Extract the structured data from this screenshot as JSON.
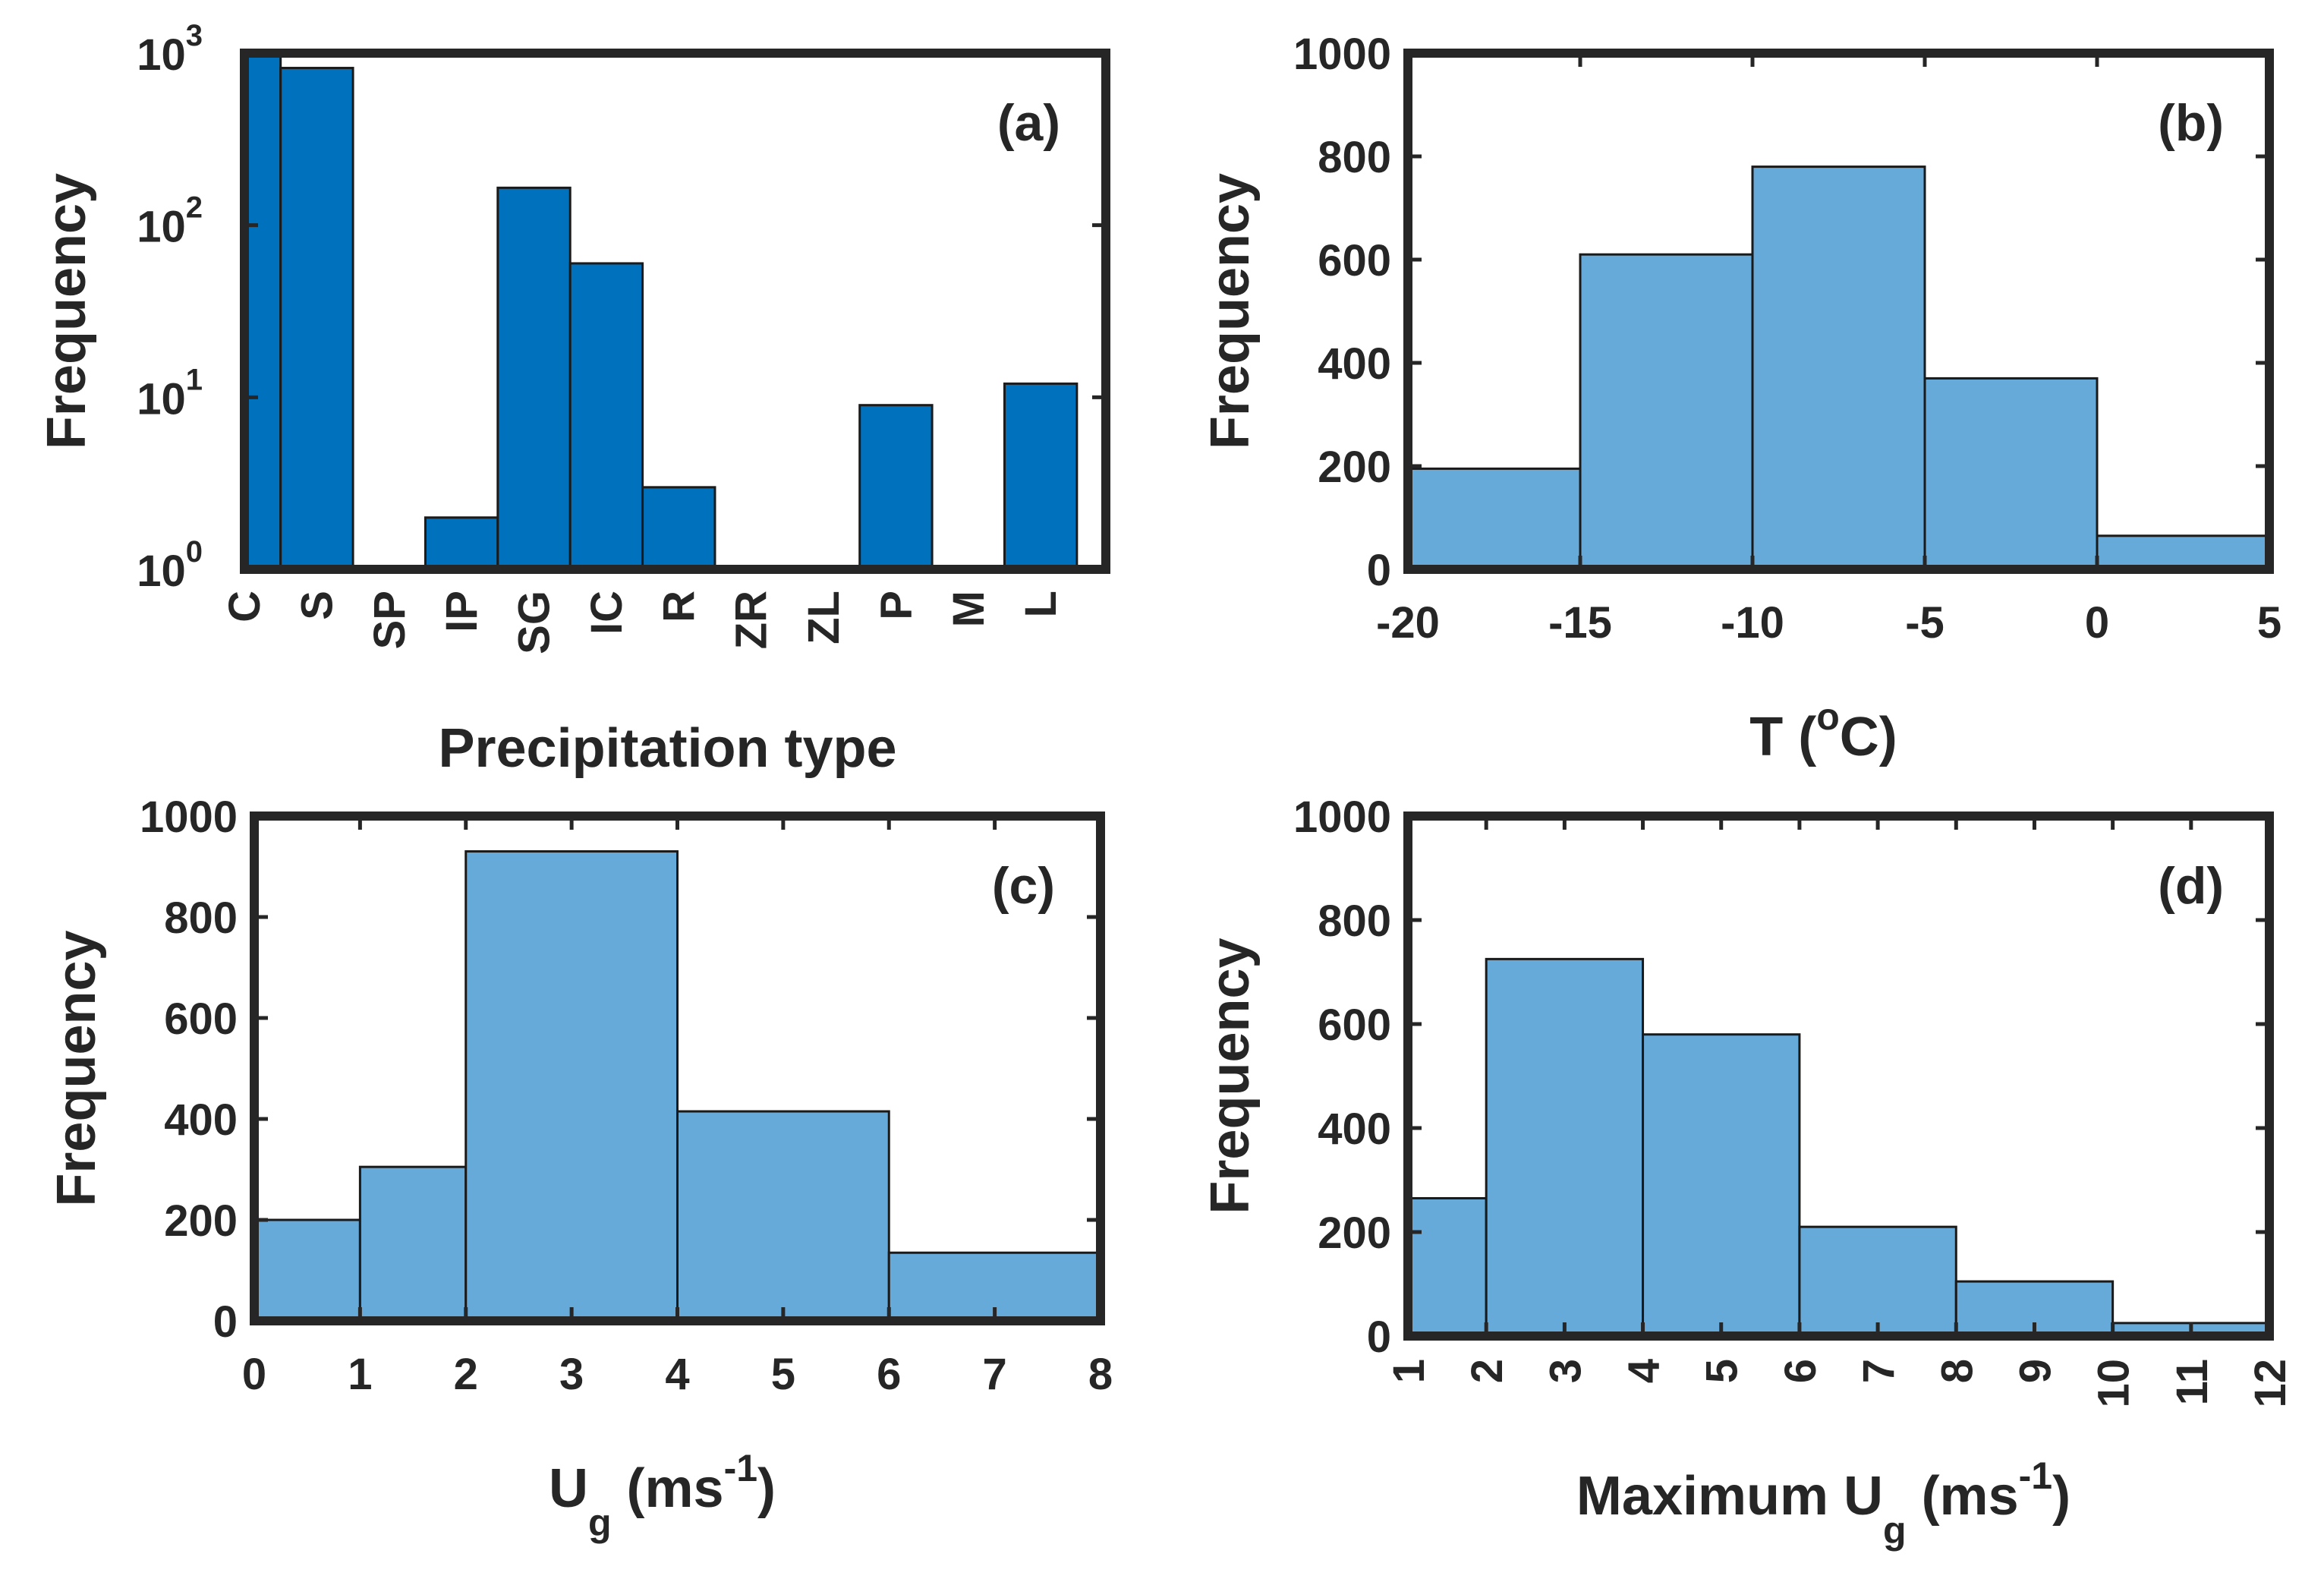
{
  "chart_data": [
    {
      "id": "a",
      "type": "bar",
      "scale": "log",
      "panel_label": "(a)",
      "xlabel": "Precipitation type",
      "ylabel": "Frequency",
      "categories": [
        "C",
        "S",
        "SP",
        "IP",
        "SG",
        "IC",
        "R",
        "ZR",
        "ZL",
        "P",
        "M",
        "L"
      ],
      "values": [
        1000,
        820,
        0,
        2,
        165,
        60,
        3,
        0,
        0,
        9,
        0,
        12
      ],
      "ylim": [
        1,
        1000
      ],
      "yticks": [
        {
          "base": "10",
          "exp": "0"
        },
        {
          "base": "10",
          "exp": "1"
        },
        {
          "base": "10",
          "exp": "2"
        },
        {
          "base": "10",
          "exp": "3"
        }
      ],
      "color": "#0072BD"
    },
    {
      "id": "b",
      "type": "histogram",
      "panel_label": "(b)",
      "xlabel": {
        "main": "T (",
        "sup": "o",
        "tail": "C)"
      },
      "ylabel": "Frequency",
      "edges": [
        -20,
        -15,
        -10,
        -5,
        0,
        5
      ],
      "values": [
        195,
        610,
        780,
        370,
        65
      ],
      "xlim": [
        -20,
        5
      ],
      "ylim": [
        0,
        1000
      ],
      "xticks": [
        "-20",
        "-15",
        "-10",
        "-5",
        "0",
        "5"
      ],
      "yticks": [
        "0",
        "200",
        "400",
        "600",
        "800",
        "1000"
      ],
      "color": "#66AADA"
    },
    {
      "id": "c",
      "type": "histogram",
      "panel_label": "(c)",
      "xlabel": {
        "main": "U",
        "sub": "g",
        "mid": " (ms",
        "sup": "-1",
        "tail": ")"
      },
      "ylabel": "Frequency",
      "edges": [
        0,
        1,
        2,
        4,
        6,
        8
      ],
      "values": [
        200,
        305,
        930,
        415,
        135
      ],
      "xlim": [
        0,
        8
      ],
      "ylim": [
        0,
        1000
      ],
      "xticks": [
        "0",
        "1",
        "2",
        "3",
        "4",
        "5",
        "6",
        "7",
        "8"
      ],
      "yticks": [
        "0",
        "200",
        "400",
        "600",
        "800",
        "1000"
      ],
      "color": "#66AADA"
    },
    {
      "id": "d",
      "type": "histogram",
      "panel_label": "(d)",
      "xlabel": {
        "main": "Maximum U",
        "sub": "g",
        "mid": " (ms",
        "sup": "-1",
        "tail": ")"
      },
      "ylabel": "Frequency",
      "edges": [
        1,
        2,
        4,
        6,
        8,
        10,
        12
      ],
      "values": [
        265,
        725,
        580,
        210,
        105,
        25
      ],
      "xlim": [
        1,
        12
      ],
      "ylim": [
        0,
        1000
      ],
      "xticks": [
        "1",
        "2",
        "3",
        "4",
        "5",
        "6",
        "7",
        "8",
        "9",
        "10",
        "11",
        "12"
      ],
      "yticks": [
        "0",
        "200",
        "400",
        "600",
        "800",
        "1000"
      ],
      "color": "#66AADA"
    }
  ]
}
